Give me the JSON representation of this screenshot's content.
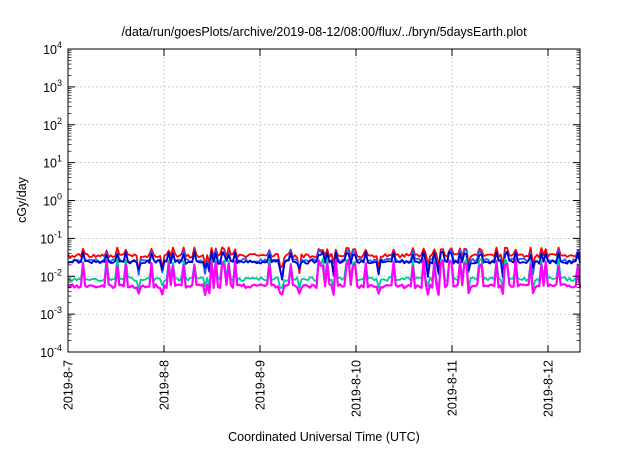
{
  "chart_data": {
    "type": "line",
    "title": "/data/run/goesPlots/archive/2019-08-12/08:00/flux/../bryn/5daysEarth.plot",
    "xlabel": "Coordinated Universal Time (UTC)",
    "ylabel": "cGy/day",
    "yscale": "log",
    "ylim": [
      0.0001,
      10000
    ],
    "xlim": [
      "2019-08-07 00:00",
      "2019-08-12 08:00"
    ],
    "grid": true,
    "legend": "none",
    "yticks": [
      {
        "base": "10",
        "exp": "4"
      },
      {
        "base": "10",
        "exp": "3"
      },
      {
        "base": "10",
        "exp": "2"
      },
      {
        "base": "10",
        "exp": "1"
      },
      {
        "base": "10",
        "exp": "0"
      },
      {
        "base": "10",
        "exp": "-1"
      },
      {
        "base": "10",
        "exp": "-2"
      },
      {
        "base": "10",
        "exp": "-3"
      },
      {
        "base": "10",
        "exp": "-4"
      }
    ],
    "xticks": [
      "2019-8-7",
      "2019-8-8",
      "2019-8-9",
      "2019-8-10",
      "2019-8-11",
      "2019-8-12"
    ],
    "series": [
      {
        "color": "#ff0000",
        "baseline": 0.035,
        "low": 0.012,
        "high": 0.058,
        "dip_depth": 0.45
      },
      {
        "color": "#1f5fff",
        "baseline": 0.026,
        "low": 0.009,
        "high": 0.05,
        "dip_depth": 0.55
      },
      {
        "color": "#0000cc",
        "baseline": 0.024,
        "low": 0.008,
        "high": 0.045,
        "dip_depth": 0.6
      },
      {
        "color": "#00c8a0",
        "baseline": 0.0085,
        "low": 0.0045,
        "high": 0.03,
        "dip_depth": 0.3
      },
      {
        "color": "#ff00ff",
        "baseline": 0.0055,
        "low": 0.0032,
        "high": 0.028,
        "dip_depth": 0.2
      }
    ]
  }
}
